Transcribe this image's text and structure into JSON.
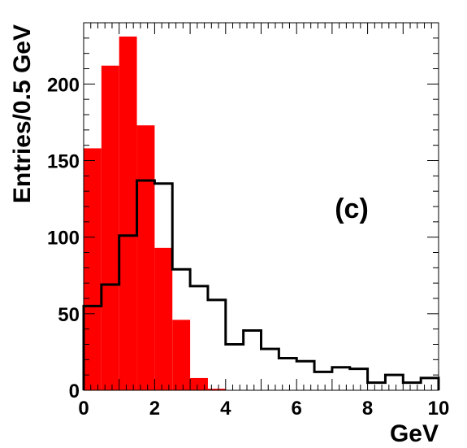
{
  "chart_data": {
    "type": "bar",
    "xlabel": "GeV",
    "ylabel": "Entries/0.5 GeV",
    "annotation": "(c)",
    "xlim": [
      0,
      10
    ],
    "ylim": [
      0,
      240
    ],
    "x_ticks": [
      0,
      2,
      4,
      6,
      8,
      10
    ],
    "y_ticks": [
      0,
      50,
      100,
      150,
      200
    ],
    "bin_width": 0.5,
    "bin_edges": [
      0,
      0.5,
      1,
      1.5,
      2,
      2.5,
      3,
      3.5,
      4,
      4.5,
      5,
      5.5,
      6,
      6.5,
      7,
      7.5,
      8,
      8.5,
      9,
      9.5,
      10
    ],
    "grid": false,
    "series": [
      {
        "style": "filled",
        "color": "#ff0000",
        "values": [
          158,
          212,
          231,
          173,
          93,
          46,
          8,
          1,
          0,
          0,
          0,
          0,
          0,
          0,
          0,
          0,
          0,
          0,
          0,
          0
        ]
      },
      {
        "style": "outline",
        "color": "#000000",
        "values": [
          55,
          69,
          101,
          137,
          135,
          79,
          68,
          59,
          30,
          39,
          27,
          21,
          19,
          12,
          15,
          14,
          5,
          10,
          5,
          8
        ]
      }
    ]
  }
}
